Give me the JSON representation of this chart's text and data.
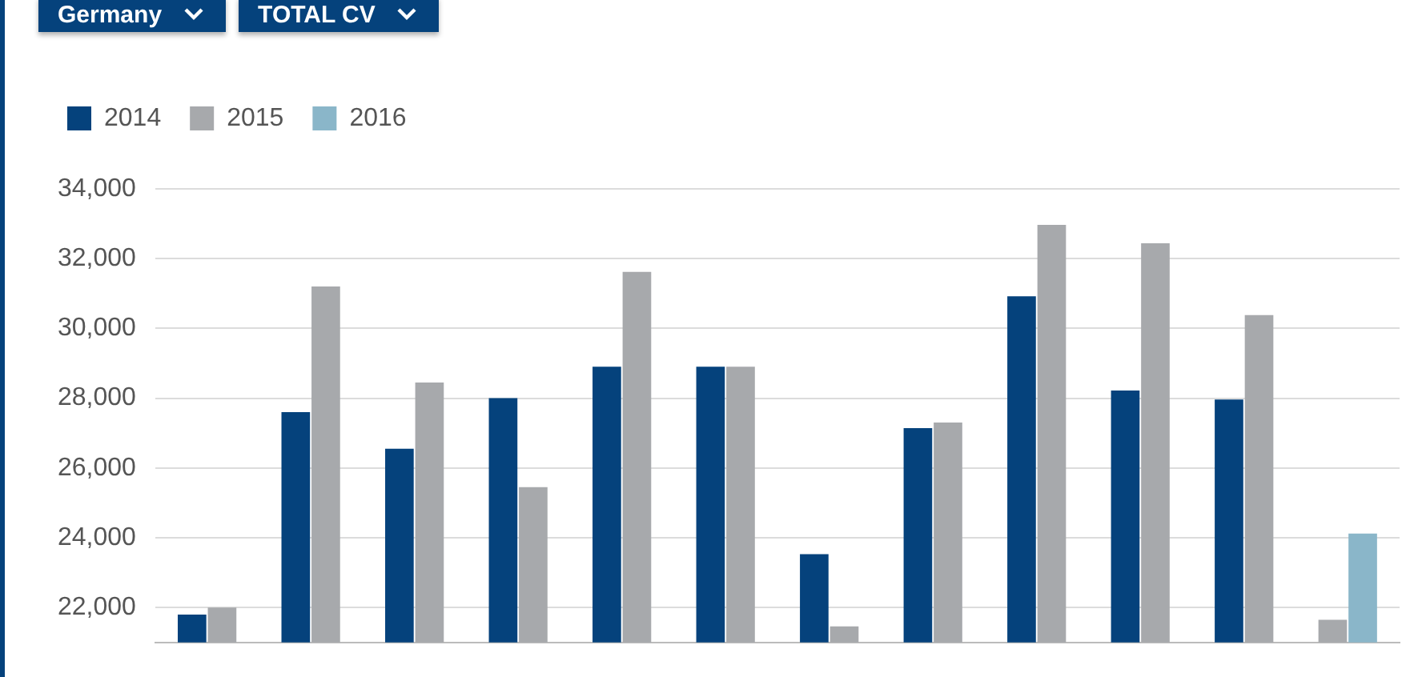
{
  "chart_data": {
    "type": "bar",
    "annotations": [
      "Germany",
      "TOTAL CV"
    ],
    "categories": [
      null,
      null,
      null,
      null,
      null,
      null,
      null,
      null,
      null,
      null,
      null,
      null
    ],
    "series": [
      {
        "name": "2014",
        "color": "#05427c",
        "values": [
          21800,
          27600,
          26550,
          28000,
          28900,
          28900,
          23530,
          27140,
          30920,
          28220,
          27960,
          null
        ]
      },
      {
        "name": "2015",
        "color": "#a7a9ac",
        "values": [
          22000,
          31200,
          28450,
          25450,
          31620,
          28900,
          21460,
          27300,
          32970,
          32440,
          30380,
          21650
        ]
      },
      {
        "name": "2016",
        "color": "#8ab6c9",
        "values": [
          null,
          null,
          null,
          null,
          null,
          null,
          null,
          null,
          null,
          null,
          null,
          24120
        ]
      }
    ],
    "ylim": [
      21000,
      34000
    ],
    "yticks": [
      {
        "value": 22000,
        "label": "22,000"
      },
      {
        "value": 24000,
        "label": "24,000"
      },
      {
        "value": 26000,
        "label": "26,000"
      },
      {
        "value": 28000,
        "label": "28,000"
      },
      {
        "value": 30000,
        "label": "30,000"
      },
      {
        "value": 32000,
        "label": "32,000"
      },
      {
        "value": 34000,
        "label": "34,000"
      }
    ],
    "grid": "y",
    "legend": "top left",
    "tick_labels": "y"
  }
}
